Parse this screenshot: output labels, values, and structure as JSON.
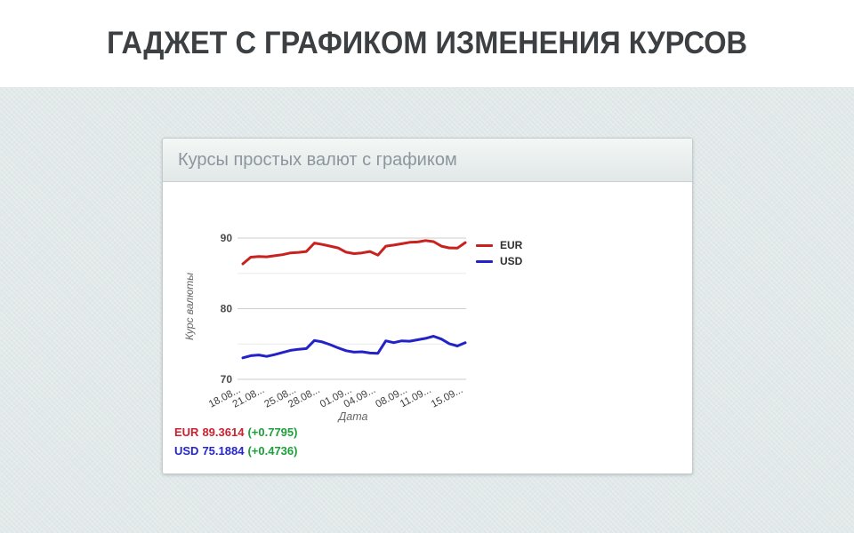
{
  "page": {
    "title": "ГАДЖЕТ С ГРАФИКОМ ИЗМЕНЕНИЯ КУРСОВ"
  },
  "widget": {
    "title": "Курсы простых валют с графиком",
    "rates": [
      {
        "code": "EUR",
        "value": "89.3614",
        "change": "(+0.7795)",
        "color": "#cc2130"
      },
      {
        "code": "USD",
        "value": "75.1884",
        "change": "(+0.4736)",
        "color": "#2525cc"
      }
    ],
    "change_color": "#1ba03a"
  },
  "chart_data": {
    "type": "line",
    "title": "",
    "xlabel": "Дата",
    "ylabel": "Курс валюты",
    "x": [
      "18.08",
      "19.08",
      "20.08",
      "21.08",
      "22.08",
      "23.08",
      "24.08",
      "25.08",
      "26.08",
      "27.08",
      "28.08",
      "29.08",
      "30.08",
      "31.08",
      "01.09",
      "02.09",
      "03.09",
      "04.09",
      "05.09",
      "06.09",
      "07.09",
      "08.09",
      "09.09",
      "10.09",
      "11.09",
      "12.09",
      "13.09",
      "14.09",
      "15.09"
    ],
    "tick_indices": [
      0,
      3,
      7,
      10,
      14,
      17,
      21,
      24,
      28
    ],
    "tick_labels": [
      "18.08...",
      "21.08...",
      "25.08...",
      "28.08...",
      "01.09...",
      "04.09...",
      "08.09...",
      "11.09...",
      "15.09..."
    ],
    "series": [
      {
        "name": "EUR",
        "color": "#c8211f",
        "values": [
          86.35,
          87.3,
          87.38,
          87.35,
          87.5,
          87.65,
          87.9,
          87.98,
          88.1,
          89.3,
          89.1,
          88.85,
          88.6,
          88.0,
          87.8,
          87.9,
          88.1,
          87.58,
          88.85,
          89.0,
          89.2,
          89.4,
          89.45,
          89.65,
          89.5,
          88.85,
          88.6,
          88.5819,
          89.3614
        ]
      },
      {
        "name": "USD",
        "color": "#2222c8",
        "values": [
          73.05,
          73.35,
          73.45,
          73.25,
          73.5,
          73.8,
          74.1,
          74.25,
          74.35,
          75.5,
          75.3,
          74.9,
          74.45,
          74.05,
          73.85,
          73.9,
          73.72,
          73.68,
          75.45,
          75.2,
          75.45,
          75.4,
          75.6,
          75.8,
          76.1,
          75.7,
          75.05,
          74.7148,
          75.1884
        ]
      }
    ],
    "yticks": [
      70,
      80,
      90
    ],
    "yticks_minor": [
      75,
      85
    ],
    "ylim": [
      68.5,
      91.5
    ],
    "grid": true,
    "legend_position": "right",
    "grid_color": "#cdcdcd",
    "minor_grid_color": "#ececec",
    "axis_text_color": "#4b4b4b",
    "tick_text_color": "#3e3e3e",
    "axis_title_color": "#666666"
  }
}
